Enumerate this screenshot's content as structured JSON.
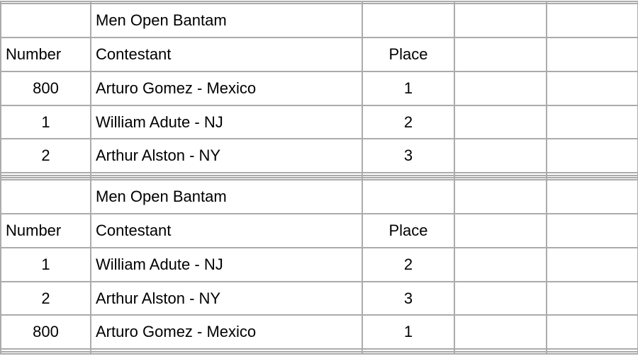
{
  "page": {
    "background_color": "#ffffff",
    "grid_line_color": "#ababab",
    "text_color": "#000000"
  },
  "table": {
    "blocks": [
      {
        "title": "Men Open Bantam",
        "headers": {
          "number": "Number",
          "contestant": "Contestant",
          "place": "Place"
        },
        "rows": [
          {
            "number": "800",
            "contestant": "Arturo Gomez - Mexico",
            "place": "1"
          },
          {
            "number": "1",
            "contestant": "William Adute - NJ",
            "place": "2"
          },
          {
            "number": "2",
            "contestant": "Arthur Alston - NY",
            "place": "3"
          }
        ]
      },
      {
        "title": "Men Open Bantam",
        "headers": {
          "number": "Number",
          "contestant": "Contestant",
          "place": "Place"
        },
        "rows": [
          {
            "number": "1",
            "contestant": "William Adute - NJ",
            "place": "2"
          },
          {
            "number": "2",
            "contestant": "Arthur Alston - NY",
            "place": "3"
          },
          {
            "number": "800",
            "contestant": "Arturo Gomez - Mexico",
            "place": "1"
          }
        ]
      }
    ]
  }
}
